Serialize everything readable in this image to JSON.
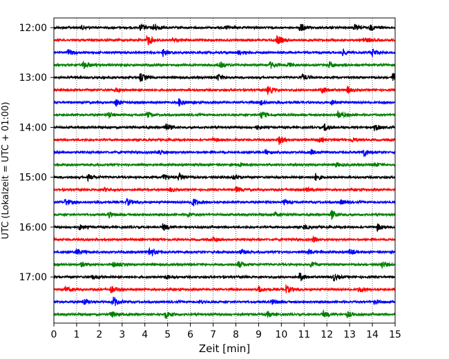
{
  "chart_data": {
    "type": "line",
    "title": "",
    "xlabel": "Zeit  [min]",
    "ylabel": "UTC (Lokalzeit = UTC + 01:00)",
    "xlim": [
      0,
      15
    ],
    "x_ticks": [
      "0",
      "1",
      "2",
      "3",
      "4",
      "5",
      "6",
      "7",
      "8",
      "9",
      "10",
      "11",
      "12",
      "13",
      "14",
      "15"
    ],
    "y_tick_labels": [
      "12:00",
      "13:00",
      "14:00",
      "15:00",
      "16:00",
      "17:00"
    ],
    "grid": "vertical dotted lines at each minute",
    "legend": "none",
    "trace_colors": [
      "#000000",
      "#ff0000",
      "#0000ff",
      "#008000"
    ],
    "traces": [
      {
        "start": "12:00",
        "events": [
          {
            "t": 1.2,
            "a": 3
          },
          {
            "t": 3.8,
            "a": 5
          },
          {
            "t": 4.4,
            "a": 6
          },
          {
            "t": 7.6,
            "a": 3
          },
          {
            "t": 10.8,
            "a": 7
          },
          {
            "t": 13.2,
            "a": 4
          },
          {
            "t": 13.9,
            "a": 4
          }
        ]
      },
      {
        "start": "12:15",
        "events": [
          {
            "t": 4.1,
            "a": 8
          },
          {
            "t": 5.2,
            "a": 3
          },
          {
            "t": 9.8,
            "a": 7
          },
          {
            "t": 13.6,
            "a": 4
          }
        ]
      },
      {
        "start": "12:30",
        "events": [
          {
            "t": 0.6,
            "a": 5
          },
          {
            "t": 4.8,
            "a": 5
          },
          {
            "t": 8.1,
            "a": 3
          },
          {
            "t": 12.7,
            "a": 4
          },
          {
            "t": 14.0,
            "a": 5
          }
        ]
      },
      {
        "start": "12:45",
        "events": [
          {
            "t": 1.3,
            "a": 6
          },
          {
            "t": 7.3,
            "a": 4
          },
          {
            "t": 9.5,
            "a": 5
          },
          {
            "t": 10.3,
            "a": 3
          },
          {
            "t": 12.1,
            "a": 4
          }
        ]
      },
      {
        "start": "13:00",
        "events": [
          {
            "t": 3.8,
            "a": 6
          },
          {
            "t": 7.2,
            "a": 5
          },
          {
            "t": 10.9,
            "a": 5
          },
          {
            "t": 14.9,
            "a": 7
          }
        ]
      },
      {
        "start": "13:15",
        "events": [
          {
            "t": 2.7,
            "a": 3
          },
          {
            "t": 9.4,
            "a": 6
          },
          {
            "t": 11.8,
            "a": 5
          },
          {
            "t": 12.9,
            "a": 4
          }
        ]
      },
      {
        "start": "13:30",
        "events": [
          {
            "t": 2.7,
            "a": 6
          },
          {
            "t": 5.5,
            "a": 6
          },
          {
            "t": 9.1,
            "a": 4
          },
          {
            "t": 12.2,
            "a": 3
          }
        ]
      },
      {
        "start": "13:45",
        "events": [
          {
            "t": 2.4,
            "a": 4
          },
          {
            "t": 4.1,
            "a": 4
          },
          {
            "t": 9.1,
            "a": 5
          },
          {
            "t": 12.5,
            "a": 6
          }
        ]
      },
      {
        "start": "14:00",
        "events": [
          {
            "t": 4.9,
            "a": 6
          },
          {
            "t": 8.9,
            "a": 3
          },
          {
            "t": 11.9,
            "a": 5
          },
          {
            "t": 14.1,
            "a": 5
          }
        ]
      },
      {
        "start": "14:15",
        "events": [
          {
            "t": 7.0,
            "a": 3
          },
          {
            "t": 9.9,
            "a": 6
          },
          {
            "t": 11.6,
            "a": 4
          },
          {
            "t": 13.1,
            "a": 3
          }
        ]
      },
      {
        "start": "14:30",
        "events": [
          {
            "t": 4.6,
            "a": 5
          },
          {
            "t": 9.3,
            "a": 3
          },
          {
            "t": 11.3,
            "a": 3
          },
          {
            "t": 13.6,
            "a": 6
          }
        ]
      },
      {
        "start": "14:45",
        "events": [
          {
            "t": 8.2,
            "a": 3
          },
          {
            "t": 12.4,
            "a": 3
          },
          {
            "t": 14.1,
            "a": 3
          }
        ]
      },
      {
        "start": "15:00",
        "events": [
          {
            "t": 1.5,
            "a": 4
          },
          {
            "t": 4.8,
            "a": 5
          },
          {
            "t": 5.5,
            "a": 6
          },
          {
            "t": 7.9,
            "a": 4
          },
          {
            "t": 11.5,
            "a": 5
          }
        ]
      },
      {
        "start": "15:15",
        "events": [
          {
            "t": 2.2,
            "a": 3
          },
          {
            "t": 5.1,
            "a": 3
          },
          {
            "t": 8.0,
            "a": 4
          },
          {
            "t": 11.1,
            "a": 3
          }
        ]
      },
      {
        "start": "15:30",
        "events": [
          {
            "t": 0.5,
            "a": 5
          },
          {
            "t": 3.2,
            "a": 5
          },
          {
            "t": 6.1,
            "a": 6
          },
          {
            "t": 10.1,
            "a": 4
          },
          {
            "t": 12.6,
            "a": 3
          }
        ]
      },
      {
        "start": "15:45",
        "events": [
          {
            "t": 2.4,
            "a": 4
          },
          {
            "t": 5.9,
            "a": 3
          },
          {
            "t": 9.7,
            "a": 3
          },
          {
            "t": 12.2,
            "a": 6
          }
        ]
      },
      {
        "start": "16:00",
        "events": [
          {
            "t": 1.1,
            "a": 4
          },
          {
            "t": 4.8,
            "a": 5
          },
          {
            "t": 11.0,
            "a": 3
          },
          {
            "t": 14.2,
            "a": 5
          }
        ]
      },
      {
        "start": "16:15",
        "events": [
          {
            "t": 7.0,
            "a": 3
          },
          {
            "t": 11.4,
            "a": 4
          }
        ]
      },
      {
        "start": "16:30",
        "events": [
          {
            "t": 1.0,
            "a": 5
          },
          {
            "t": 4.2,
            "a": 7
          },
          {
            "t": 8.2,
            "a": 3
          },
          {
            "t": 11.2,
            "a": 4
          },
          {
            "t": 13.0,
            "a": 4
          }
        ]
      },
      {
        "start": "16:45",
        "events": [
          {
            "t": 1.2,
            "a": 3
          },
          {
            "t": 2.6,
            "a": 4
          },
          {
            "t": 8.1,
            "a": 5
          },
          {
            "t": 11.3,
            "a": 4
          },
          {
            "t": 14.4,
            "a": 5
          }
        ]
      },
      {
        "start": "17:00",
        "events": [
          {
            "t": 1.7,
            "a": 3
          },
          {
            "t": 4.9,
            "a": 3
          },
          {
            "t": 10.8,
            "a": 6
          },
          {
            "t": 12.3,
            "a": 5
          }
        ]
      },
      {
        "start": "17:15",
        "events": [
          {
            "t": 0.5,
            "a": 4
          },
          {
            "t": 2.5,
            "a": 5
          },
          {
            "t": 9.0,
            "a": 4
          },
          {
            "t": 10.2,
            "a": 6
          },
          {
            "t": 13.4,
            "a": 4
          }
        ]
      },
      {
        "start": "17:30",
        "events": [
          {
            "t": 1.3,
            "a": 5
          },
          {
            "t": 2.6,
            "a": 8
          },
          {
            "t": 6.4,
            "a": 3
          },
          {
            "t": 9.6,
            "a": 4
          },
          {
            "t": 14.1,
            "a": 3
          }
        ]
      },
      {
        "start": "17:45",
        "events": [
          {
            "t": 2.5,
            "a": 5
          },
          {
            "t": 4.9,
            "a": 6
          },
          {
            "t": 9.4,
            "a": 4
          },
          {
            "t": 11.8,
            "a": 5
          },
          {
            "t": 12.9,
            "a": 4
          }
        ]
      }
    ]
  }
}
